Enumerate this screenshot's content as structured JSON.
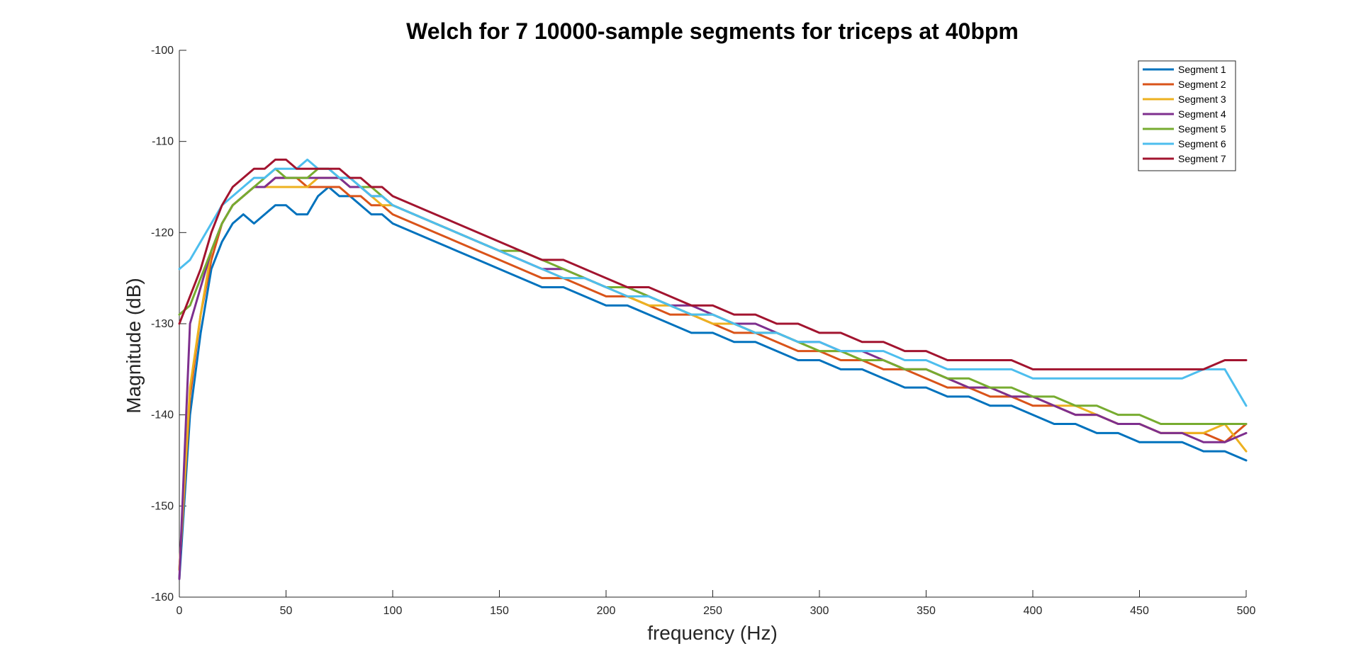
{
  "chart_data": {
    "type": "line",
    "title": "Welch for 7 10000-sample segments for triceps at 40bpm",
    "xlabel": "frequency (Hz)",
    "ylabel": "Magnitude (dB)",
    "xlim": [
      0,
      500
    ],
    "ylim": [
      -160,
      -100
    ],
    "xticks": [
      0,
      50,
      100,
      150,
      200,
      250,
      300,
      350,
      400,
      450,
      500
    ],
    "yticks": [
      -160,
      -150,
      -140,
      -130,
      -120,
      -110,
      -100
    ],
    "grid": false,
    "legend_position": "top-right",
    "x": [
      0,
      5,
      10,
      15,
      20,
      25,
      30,
      35,
      40,
      45,
      50,
      55,
      60,
      65,
      70,
      75,
      80,
      85,
      90,
      95,
      100,
      110,
      120,
      130,
      140,
      150,
      160,
      170,
      180,
      190,
      200,
      210,
      220,
      230,
      240,
      250,
      260,
      270,
      280,
      290,
      300,
      310,
      320,
      330,
      340,
      350,
      360,
      370,
      380,
      390,
      400,
      410,
      420,
      430,
      440,
      450,
      460,
      470,
      480,
      490,
      500
    ],
    "series": [
      {
        "name": "Segment 1",
        "color": "#0072BD",
        "values": [
          -158,
          -140,
          -131,
          -124,
          -121,
          -119,
          -118,
          -119,
          -118,
          -117,
          -117,
          -118,
          -118,
          -116,
          -115,
          -116,
          -116,
          -117,
          -118,
          -118,
          -119,
          -120,
          -121,
          -122,
          -123,
          -124,
          -125,
          -126,
          -126,
          -127,
          -128,
          -128,
          -129,
          -130,
          -131,
          -131,
          -132,
          -132,
          -133,
          -134,
          -134,
          -135,
          -135,
          -136,
          -137,
          -137,
          -138,
          -138,
          -139,
          -139,
          -140,
          -141,
          -141,
          -142,
          -142,
          -143,
          -143,
          -143,
          -144,
          -144,
          -145
        ]
      },
      {
        "name": "Segment 2",
        "color": "#D95319",
        "values": [
          -157,
          -138,
          -129,
          -123,
          -119,
          -117,
          -116,
          -115,
          -115,
          -114,
          -114,
          -114,
          -115,
          -115,
          -115,
          -115,
          -116,
          -116,
          -117,
          -117,
          -118,
          -119,
          -120,
          -121,
          -122,
          -123,
          -124,
          -125,
          -125,
          -126,
          -127,
          -127,
          -128,
          -129,
          -129,
          -130,
          -131,
          -131,
          -132,
          -133,
          -133,
          -134,
          -134,
          -135,
          -135,
          -136,
          -137,
          -137,
          -138,
          -138,
          -139,
          -139,
          -140,
          -140,
          -141,
          -141,
          -142,
          -142,
          -142,
          -143,
          -141
        ]
      },
      {
        "name": "Segment 3",
        "color": "#EDB120",
        "values": [
          -157,
          -137,
          -129,
          -122,
          -119,
          -117,
          -116,
          -115,
          -115,
          -115,
          -115,
          -115,
          -115,
          -114,
          -114,
          -114,
          -115,
          -115,
          -116,
          -117,
          -117,
          -118,
          -119,
          -120,
          -121,
          -122,
          -123,
          -124,
          -125,
          -125,
          -126,
          -127,
          -128,
          -128,
          -129,
          -130,
          -130,
          -131,
          -131,
          -132,
          -133,
          -133,
          -134,
          -134,
          -135,
          -135,
          -136,
          -137,
          -137,
          -138,
          -138,
          -139,
          -139,
          -140,
          -141,
          -141,
          -142,
          -142,
          -142,
          -141,
          -144
        ]
      },
      {
        "name": "Segment 4",
        "color": "#7E2F8E",
        "values": [
          -158,
          -130,
          -126,
          -122,
          -119,
          -117,
          -116,
          -115,
          -115,
          -114,
          -114,
          -114,
          -114,
          -114,
          -114,
          -114,
          -115,
          -115,
          -116,
          -116,
          -117,
          -118,
          -119,
          -120,
          -121,
          -122,
          -123,
          -124,
          -124,
          -125,
          -126,
          -126,
          -127,
          -128,
          -128,
          -129,
          -130,
          -130,
          -131,
          -132,
          -132,
          -133,
          -133,
          -134,
          -135,
          -135,
          -136,
          -137,
          -137,
          -138,
          -138,
          -139,
          -140,
          -140,
          -141,
          -141,
          -142,
          -142,
          -143,
          -143,
          -142
        ]
      },
      {
        "name": "Segment 5",
        "color": "#77AC30",
        "values": [
          -129,
          -128,
          -125,
          -122,
          -119,
          -117,
          -116,
          -115,
          -114,
          -113,
          -114,
          -114,
          -114,
          -113,
          -113,
          -114,
          -114,
          -115,
          -115,
          -116,
          -117,
          -118,
          -119,
          -120,
          -121,
          -122,
          -122,
          -123,
          -124,
          -125,
          -126,
          -126,
          -127,
          -128,
          -129,
          -129,
          -130,
          -131,
          -131,
          -132,
          -133,
          -133,
          -134,
          -134,
          -135,
          -135,
          -136,
          -136,
          -137,
          -137,
          -138,
          -138,
          -139,
          -139,
          -140,
          -140,
          -141,
          -141,
          -141,
          -141,
          -141
        ]
      },
      {
        "name": "Segment 6",
        "color": "#4DBEEE",
        "values": [
          -124,
          -123,
          -121,
          -119,
          -117,
          -116,
          -115,
          -114,
          -114,
          -113,
          -113,
          -113,
          -112,
          -113,
          -113,
          -114,
          -114,
          -115,
          -116,
          -116,
          -117,
          -118,
          -119,
          -120,
          -121,
          -122,
          -123,
          -124,
          -125,
          -125,
          -126,
          -127,
          -127,
          -128,
          -129,
          -129,
          -130,
          -131,
          -131,
          -132,
          -132,
          -133,
          -133,
          -133,
          -134,
          -134,
          -135,
          -135,
          -135,
          -135,
          -136,
          -136,
          -136,
          -136,
          -136,
          -136,
          -136,
          -136,
          -135,
          -135,
          -139
        ]
      },
      {
        "name": "Segment 7",
        "color": "#A2142F",
        "values": [
          -130,
          -127,
          -124,
          -120,
          -117,
          -115,
          -114,
          -113,
          -113,
          -112,
          -112,
          -113,
          -113,
          -113,
          -113,
          -113,
          -114,
          -114,
          -115,
          -115,
          -116,
          -117,
          -118,
          -119,
          -120,
          -121,
          -122,
          -123,
          -123,
          -124,
          -125,
          -126,
          -126,
          -127,
          -128,
          -128,
          -129,
          -129,
          -130,
          -130,
          -131,
          -131,
          -132,
          -132,
          -133,
          -133,
          -134,
          -134,
          -134,
          -134,
          -135,
          -135,
          -135,
          -135,
          -135,
          -135,
          -135,
          -135,
          -135,
          -134,
          -134
        ]
      }
    ]
  }
}
